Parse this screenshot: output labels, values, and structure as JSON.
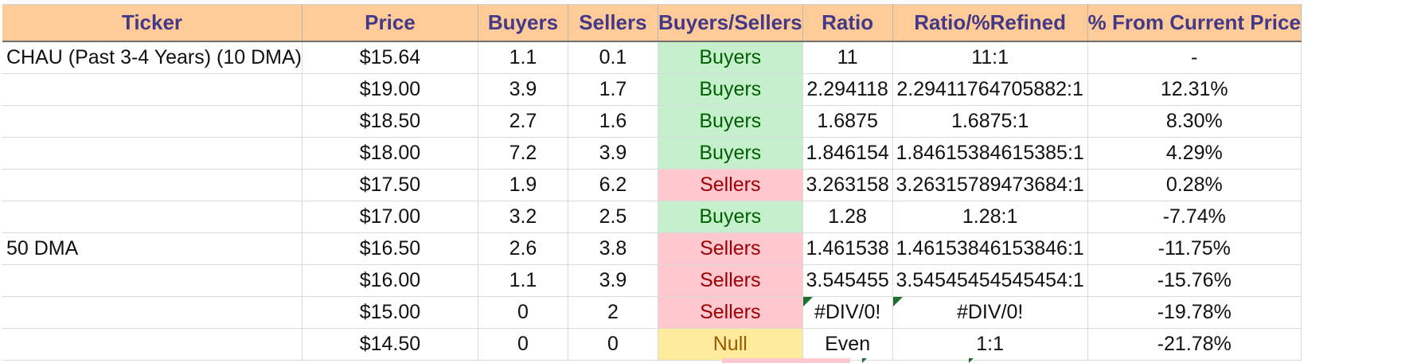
{
  "headers": [
    "Ticker",
    "Price",
    "Buyers",
    "Sellers",
    "Buyers/Sellers",
    "Ratio",
    "Ratio/%Refined",
    "% From Current Price"
  ],
  "rows": [
    {
      "ticker": "CHAU (Past 3-4 Years) (10 DMA)",
      "price": "$15.64",
      "buyers": "1.1",
      "sellers": "0.1",
      "bs": "Buyers",
      "ratio": "11",
      "refined": "11:1",
      "pct": "-"
    },
    {
      "ticker": "",
      "price": "$19.00",
      "buyers": "3.9",
      "sellers": "1.7",
      "bs": "Buyers",
      "ratio": "2.294118",
      "refined": "2.29411764705882:1",
      "pct": "12.31%"
    },
    {
      "ticker": "",
      "price": "$18.50",
      "buyers": "2.7",
      "sellers": "1.6",
      "bs": "Buyers",
      "ratio": "1.6875",
      "refined": "1.6875:1",
      "pct": "8.30%"
    },
    {
      "ticker": "",
      "price": "$18.00",
      "buyers": "7.2",
      "sellers": "3.9",
      "bs": "Buyers",
      "ratio": "1.846154",
      "refined": "1.84615384615385:1",
      "pct": "4.29%"
    },
    {
      "ticker": "",
      "price": "$17.50",
      "buyers": "1.9",
      "sellers": "6.2",
      "bs": "Sellers",
      "ratio": "3.263158",
      "refined": "3.26315789473684:1",
      "pct": "0.28%"
    },
    {
      "ticker": "",
      "price": "$17.00",
      "buyers": "3.2",
      "sellers": "2.5",
      "bs": "Buyers",
      "ratio": "1.28",
      "refined": "1.28:1",
      "pct": "-7.74%"
    },
    {
      "ticker": "50 DMA",
      "price": "$16.50",
      "buyers": "2.6",
      "sellers": "3.8",
      "bs": "Sellers",
      "ratio": "1.461538",
      "refined": "1.46153846153846:1",
      "pct": "-11.75%"
    },
    {
      "ticker": "",
      "price": "$16.00",
      "buyers": "1.1",
      "sellers": "3.9",
      "bs": "Sellers",
      "ratio": "3.545455",
      "refined": "3.54545454545454:1",
      "pct": "-15.76%"
    },
    {
      "ticker": "",
      "price": "$15.00",
      "buyers": "0",
      "sellers": "2",
      "bs": "Sellers",
      "ratio": "#DIV/0!",
      "refined": "#DIV/0!",
      "pct": "-19.78%",
      "error_flags": true
    },
    {
      "ticker": "",
      "price": "$14.50",
      "buyers": "0",
      "sellers": "0",
      "bs": "Null",
      "ratio": "Even",
      "refined": "1:1",
      "pct": "-21.78%"
    }
  ],
  "colors": {
    "header_bg": "#ffcc99",
    "header_text": "#433987",
    "buyers_bg": "#c6efce",
    "buyers_text": "#006100",
    "sellers_bg": "#ffc7ce",
    "sellers_text": "#9c0006",
    "null_bg": "#ffeb9c",
    "null_text": "#9c5700",
    "error_flag": "#1e6f2e"
  }
}
